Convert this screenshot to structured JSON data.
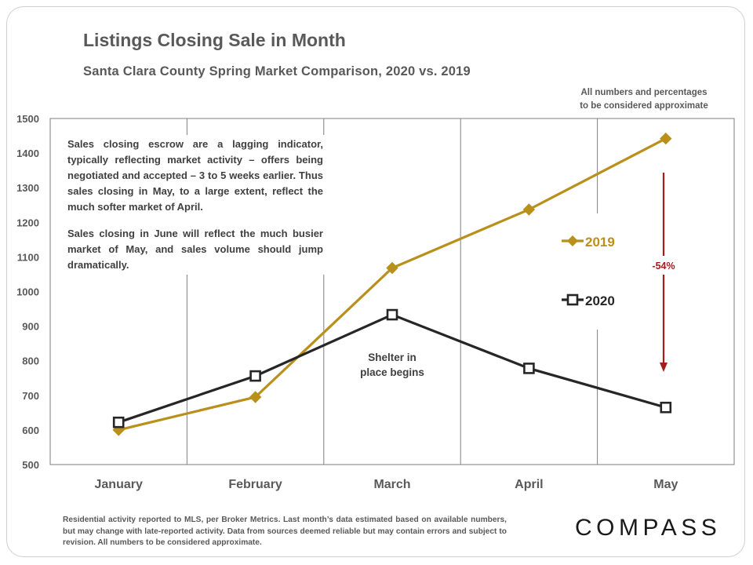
{
  "header": {
    "title": "Listings Closing Sale in Month",
    "subtitle": "Santa Clara County Spring Market Comparison,  2020 vs. 2019",
    "approx_note_line1": "All numbers and percentages",
    "approx_note_line2": "to be considered approximate"
  },
  "annotation": {
    "paragraph1": "Sales closing escrow are a lagging indicator, typically reflecting market activity – offers being negotiated and accepted – 3 to 5 weeks earlier.  Thus sales closing in May, to a large extent, reflect the much softer market of April.",
    "paragraph2": "Sales closing in June will reflect the much busier market of May, and sales volume should jump dramatically."
  },
  "event_label": {
    "line1": "Shelter in",
    "line2": "place begins"
  },
  "change_label": "-54%",
  "footnote": "Residential activity reported to MLS, per Broker Metrics. Last month’s data estimated based on available numbers, but may change with late-reported activity. Data from sources deemed reliable but may contain errors and subject to revision. All numbers to be considered approximate.",
  "logo_text": "COMPASS",
  "colors": {
    "series_2019": "#b8901b",
    "series_2020": "#262626",
    "arrow": "#a61c1c",
    "grid": "#7f7f7f",
    "text": "#595959"
  },
  "chart_data": {
    "type": "line",
    "title": "Listings Closing Sale in Month",
    "subtitle": "Santa Clara County Spring Market Comparison,  2020 vs. 2019",
    "categories": [
      "January",
      "February",
      "March",
      "April",
      "May"
    ],
    "ylim": [
      500,
      1500
    ],
    "yticks": [
      500,
      600,
      700,
      800,
      900,
      1000,
      1100,
      1200,
      1300,
      1400,
      1500
    ],
    "grid": "vertical",
    "legend": "right",
    "series": [
      {
        "name": "2019",
        "marker": "diamond",
        "values": [
          600,
          695,
          1068,
          1237,
          1442
        ]
      },
      {
        "name": "2020",
        "marker": "square",
        "values": [
          622,
          756,
          933,
          778,
          665
        ]
      }
    ]
  }
}
